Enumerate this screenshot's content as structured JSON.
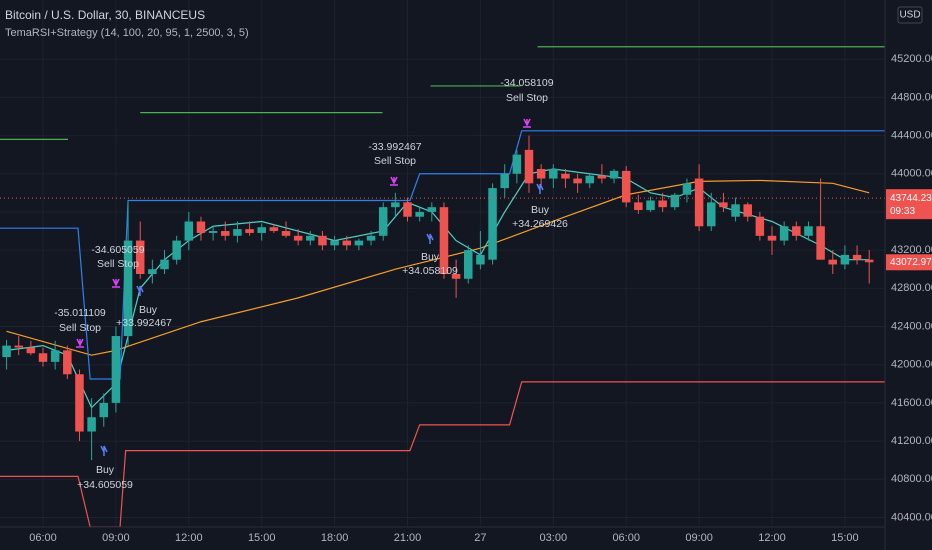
{
  "chart_data": {
    "type": "candlestick",
    "title": "Bitcoin / U.S. Dollar, 30, BINANCEUS",
    "subtitle": "TemaRSI+Strategy (14, 100, 20, 95, 1, 2500, 3, 5)",
    "currency": "USD",
    "up_color": "#26a69a",
    "down_color": "#ef5350",
    "grid": true,
    "xlim": [
      4.23,
      40.65
    ],
    "ylim": [
      40300,
      45820
    ],
    "xticks": [
      {
        "value": 6,
        "label": "06:00"
      },
      {
        "value": 9,
        "label": "09:00"
      },
      {
        "value": 12,
        "label": "12:00"
      },
      {
        "value": 15,
        "label": "15:00"
      },
      {
        "value": 18,
        "label": "18:00"
      },
      {
        "value": 21,
        "label": "21:00"
      },
      {
        "value": 24,
        "label": "27"
      },
      {
        "value": 27,
        "label": "03:00"
      },
      {
        "value": 30,
        "label": "06:00"
      },
      {
        "value": 33,
        "label": "09:00"
      },
      {
        "value": 36,
        "label": "12:00"
      },
      {
        "value": 39,
        "label": "15:00"
      }
    ],
    "yticks": [
      {
        "value": 40400,
        "label": "40400.00"
      },
      {
        "value": 40800,
        "label": "40800.00"
      },
      {
        "value": 41200,
        "label": "41200.00"
      },
      {
        "value": 41600,
        "label": "41600.00"
      },
      {
        "value": 42000,
        "label": "42000.00"
      },
      {
        "value": 42400,
        "label": "42400.00"
      },
      {
        "value": 42800,
        "label": "42800.00"
      },
      {
        "value": 43200,
        "label": "43200.00"
      },
      {
        "value": 43600,
        "label": "43600.00"
      },
      {
        "value": 44000,
        "label": "44000.00"
      },
      {
        "value": 44400,
        "label": "44400.00"
      },
      {
        "value": 44800,
        "label": "44800.00"
      },
      {
        "value": 45200,
        "label": "45200.00"
      }
    ],
    "x": [
      4.5,
      5,
      5.5,
      6,
      6.5,
      7,
      7.5,
      8,
      8.5,
      9,
      9.5,
      10,
      10.5,
      11,
      11.5,
      12,
      12.5,
      13,
      13.5,
      14,
      14.5,
      15,
      15.5,
      16,
      16.5,
      17,
      17.5,
      18,
      18.5,
      19,
      19.5,
      20,
      20.5,
      21,
      21.5,
      22,
      22.5,
      23,
      23.5,
      24,
      24.5,
      25,
      25.5,
      26,
      26.5,
      27,
      27.5,
      28,
      28.5,
      29,
      29.5,
      30,
      30.5,
      31,
      31.5,
      32,
      32.5,
      33,
      33.5,
      34,
      34.5,
      35,
      35.5,
      36,
      36.5,
      37,
      37.5,
      38,
      38.5,
      39,
      39.5,
      40
    ],
    "open": [
      42080,
      42200,
      42180,
      42120,
      42030,
      42150,
      41900,
      41300,
      41450,
      41600,
      42300,
      43300,
      42950,
      43000,
      43100,
      43300,
      43500,
      43380,
      43400,
      43350,
      43420,
      43380,
      43440,
      43400,
      43350,
      43300,
      43350,
      43250,
      43300,
      43250,
      43300,
      43350,
      43650,
      43700,
      43550,
      43600,
      43650,
      42950,
      42900,
      43050,
      43100,
      43850,
      44000,
      44250,
      44050,
      43950,
      44000,
      43950,
      43900,
      43980,
      43950,
      44030,
      43700,
      43620,
      43720,
      43650,
      43780,
      43950,
      43450,
      43700,
      43550,
      43680,
      43550,
      43350,
      43300,
      43450,
      43350,
      43450,
      43100,
      43050,
      43150,
      43100
    ],
    "high": [
      42260,
      42300,
      42250,
      42180,
      42250,
      42200,
      41950,
      41650,
      41700,
      42400,
      43700,
      43500,
      43100,
      43200,
      43350,
      43600,
      43550,
      43450,
      43500,
      43500,
      43500,
      43480,
      43470,
      43500,
      43420,
      43400,
      43400,
      43350,
      43350,
      43320,
      43400,
      43700,
      43800,
      43750,
      43650,
      43700,
      43700,
      43100,
      43250,
      43400,
      43900,
      44100,
      44250,
      44400,
      44100,
      44100,
      44050,
      44000,
      44000,
      44100,
      44050,
      44080,
      43780,
      43760,
      43800,
      43800,
      43950,
      44100,
      43800,
      43800,
      43750,
      43700,
      43600,
      43450,
      43500,
      43500,
      43500,
      43950,
      43200,
      43250,
      43250,
      43200
    ],
    "low": [
      41950,
      42100,
      42100,
      41980,
      41950,
      41850,
      41200,
      41000,
      41350,
      41500,
      42200,
      42900,
      42850,
      42950,
      43050,
      43200,
      43300,
      43300,
      43300,
      43280,
      43350,
      43300,
      43380,
      43330,
      43250,
      43250,
      43200,
      43200,
      43200,
      43200,
      43250,
      43300,
      43550,
      43500,
      43500,
      43500,
      42900,
      42700,
      42850,
      43000,
      43050,
      43750,
      43900,
      43800,
      43850,
      43850,
      43850,
      43800,
      43850,
      43900,
      43900,
      43650,
      43580,
      43600,
      43600,
      43620,
      43700,
      43400,
      43400,
      43600,
      43500,
      43500,
      43300,
      43150,
      43250,
      43300,
      43300,
      43100,
      42950,
      43000,
      43050,
      42850
    ],
    "close": [
      42200,
      42180,
      42120,
      42030,
      42150,
      41900,
      41300,
      41450,
      41600,
      42300,
      43300,
      42950,
      43000,
      43100,
      43300,
      43500,
      43380,
      43400,
      43350,
      43420,
      43380,
      43440,
      43400,
      43350,
      43300,
      43350,
      43250,
      43300,
      43250,
      43300,
      43350,
      43650,
      43700,
      43550,
      43600,
      43650,
      42950,
      42900,
      43200,
      43150,
      43850,
      44000,
      44200,
      43900,
      43950,
      44050,
      43950,
      43900,
      43980,
      43950,
      44030,
      43700,
      43620,
      43720,
      43650,
      43780,
      43900,
      43450,
      43700,
      43650,
      43680,
      43550,
      43350,
      43300,
      43450,
      43350,
      43450,
      43100,
      43050,
      43150,
      43100,
      43072.97
    ],
    "lines": [
      {
        "color": "#f59e2b",
        "x": [
          4.5,
          8,
          9,
          12.5,
          16.5,
          20.5,
          24,
          27.5,
          30,
          33,
          35.5,
          38.5,
          40
        ],
        "values": [
          42350,
          42100,
          42150,
          42450,
          42700,
          43000,
          43220,
          43550,
          43780,
          43920,
          43930,
          43900,
          43800
        ]
      },
      {
        "color": "#4fd1c5",
        "x": [
          4.5,
          6,
          7,
          8,
          9,
          10,
          11,
          12,
          13,
          15,
          18,
          20,
          21,
          22,
          23,
          24,
          25,
          26,
          27,
          30,
          31,
          32,
          33,
          34,
          36,
          38,
          39,
          40
        ],
        "values": [
          42150,
          42200,
          42100,
          41550,
          41800,
          42800,
          43100,
          43300,
          43450,
          43500,
          43300,
          43400,
          43700,
          43600,
          43300,
          43150,
          43600,
          44000,
          44050,
          43950,
          43800,
          43750,
          43850,
          43650,
          43500,
          43250,
          43100,
          43100
        ]
      },
      {
        "color": "#2f80ed",
        "x": [
          4.23,
          7.44,
          7.94,
          9.17,
          9.5,
          21.1,
          21.5,
          25.2,
          25.7,
          40.65
        ],
        "values": [
          43430,
          43430,
          41850,
          41850,
          43720,
          43720,
          44000,
          44000,
          44450,
          44450
        ]
      },
      {
        "color": "#ef5350",
        "x": [
          4.23,
          7.44,
          7.94,
          9.17,
          9.4,
          21.1,
          21.5,
          25.2,
          25.7,
          40.65
        ],
        "values": [
          40830,
          40830,
          40300,
          40300,
          41100,
          41100,
          41370,
          41370,
          41820,
          41820
        ]
      },
      {
        "color": "#4caf50",
        "x": [
          4.23,
          7.03
        ],
        "values": [
          44360,
          44360
        ]
      },
      {
        "color": "#4caf50",
        "x": [
          10,
          19.97
        ],
        "values": [
          44640,
          44640
        ]
      },
      {
        "color": "#4caf50",
        "x": [
          21.95,
          25.65
        ],
        "values": [
          44920,
          44920
        ]
      },
      {
        "color": "#4caf50",
        "x": [
          26.35,
          40.65
        ],
        "values": [
          45330,
          45330
        ]
      }
    ],
    "marker_price": 43744.23,
    "countdown": "09:33",
    "last_price": 43072.97,
    "signals": [
      {
        "amount": "-35.011109",
        "text": "Sell Stop"
      },
      {
        "amount": "+34.605059",
        "text": "Buy"
      },
      {
        "amount": "-34.605059",
        "text": "Sell Stop"
      },
      {
        "amount": "+33.992467",
        "text": "Buy"
      },
      {
        "amount": "-33.992467",
        "text": "Sell Stop"
      },
      {
        "amount": "+34.058109",
        "text": "Buy"
      },
      {
        "amount": "-34.058109",
        "text": "Sell Stop"
      },
      {
        "amount": "+34.269426",
        "text": "Buy"
      }
    ]
  }
}
